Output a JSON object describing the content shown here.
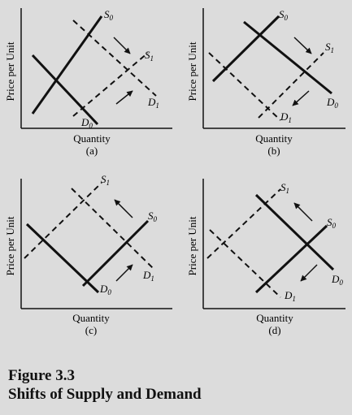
{
  "axis": {
    "ylabel": "Price per Unit",
    "xlabel": "Quantity"
  },
  "curve_names": {
    "supply_base": "S",
    "supply_sub": "0",
    "supply1_base": "S",
    "supply1_sub": "1",
    "demand_base": "D",
    "demand_sub": "0",
    "demand1_base": "D",
    "demand1_sub": "1"
  },
  "panels": [
    {
      "id": "a",
      "sublabel": "(a)",
      "shifts": "Demand shifts right from D0 to D1; supply shifts right from S0 to S1"
    },
    {
      "id": "b",
      "sublabel": "(b)",
      "shifts": "Supply shifts right from S0 to S1; demand shifts left from D0 to D1"
    },
    {
      "id": "c",
      "sublabel": "(c)",
      "shifts": "Supply shifts left from S0 to S1; demand shifts right from D0 to D1"
    },
    {
      "id": "d",
      "sublabel": "(d)",
      "shifts": "Supply shifts left from S0 to S1; demand shifts left from D0 to D1"
    }
  ],
  "caption": {
    "number": "Figure 3.3",
    "title": "Shifts of Supply and Demand"
  },
  "colors": {
    "background": "#dcdcdc",
    "ink": "#111111"
  }
}
